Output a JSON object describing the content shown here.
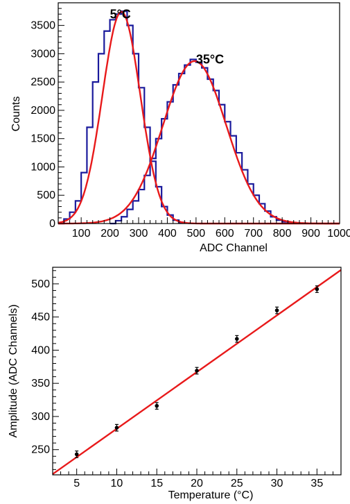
{
  "chart_data": [
    {
      "type": "histogram",
      "xlabel": "ADC Channel",
      "ylabel": "Counts",
      "xlim": [
        20,
        1000
      ],
      "ylim": [
        0,
        3900
      ],
      "xticks": [
        100,
        200,
        300,
        400,
        500,
        600,
        700,
        800,
        900,
        1000
      ],
      "yticks": [
        0,
        500,
        1000,
        1500,
        2000,
        2500,
        3000,
        3500
      ],
      "colors": {
        "histogram": "#1a1a9c",
        "fit": "#e8191a"
      },
      "annotations": [
        {
          "text": "5°C",
          "x": 200,
          "y": 3700
        },
        {
          "text": "35°C",
          "x": 500,
          "y": 2900
        }
      ],
      "series": [
        {
          "bins": [
            [
              20,
              0
            ],
            [
              40,
              80
            ],
            [
              60,
              200
            ],
            [
              80,
              400
            ],
            [
              100,
              900
            ],
            [
              120,
              1700
            ],
            [
              140,
              2500
            ],
            [
              160,
              3000
            ],
            [
              180,
              3400
            ],
            [
              200,
              3600
            ],
            [
              220,
              3700
            ],
            [
              240,
              3750
            ],
            [
              260,
              3500
            ],
            [
              280,
              3000
            ],
            [
              300,
              2400
            ],
            [
              320,
              1700
            ],
            [
              340,
              1100
            ],
            [
              360,
              650
            ],
            [
              380,
              300
            ],
            [
              400,
              150
            ],
            [
              420,
              60
            ],
            [
              440,
              20
            ],
            [
              460,
              0
            ]
          ]
        },
        {
          "bins": [
            [
              200,
              0
            ],
            [
              220,
              50
            ],
            [
              240,
              120
            ],
            [
              260,
              250
            ],
            [
              280,
              400
            ],
            [
              300,
              600
            ],
            [
              320,
              850
            ],
            [
              340,
              1150
            ],
            [
              360,
              1500
            ],
            [
              380,
              1850
            ],
            [
              400,
              2150
            ],
            [
              420,
              2450
            ],
            [
              440,
              2650
            ],
            [
              460,
              2800
            ],
            [
              480,
              2900
            ],
            [
              500,
              2850
            ],
            [
              520,
              2750
            ],
            [
              540,
              2550
            ],
            [
              560,
              2350
            ],
            [
              580,
              2100
            ],
            [
              600,
              1800
            ],
            [
              620,
              1550
            ],
            [
              640,
              1250
            ],
            [
              660,
              950
            ],
            [
              680,
              700
            ],
            [
              700,
              500
            ],
            [
              720,
              350
            ],
            [
              740,
              220
            ],
            [
              760,
              120
            ],
            [
              780,
              60
            ],
            [
              800,
              30
            ],
            [
              820,
              10
            ],
            [
              840,
              0
            ]
          ]
        }
      ],
      "fits": [
        {
          "type": "gaussian",
          "mean": 240,
          "sigma": 66,
          "amplitude": 3740
        },
        {
          "type": "gaussian",
          "mean": 495,
          "sigma": 110,
          "amplitude": 2870
        }
      ]
    },
    {
      "type": "scatter",
      "xlabel": "Temperature (°C)",
      "ylabel": "Amplitude (ADC Channels)",
      "xlim": [
        2,
        38
      ],
      "ylim": [
        212,
        525
      ],
      "xticks": [
        5,
        10,
        15,
        20,
        25,
        30,
        35
      ],
      "yticks": [
        250,
        300,
        350,
        400,
        450,
        500
      ],
      "colors": {
        "points": "#000000",
        "fit": "#e8191a"
      },
      "x": [
        5,
        10,
        15,
        20,
        25,
        30,
        35
      ],
      "y": [
        243,
        283,
        316,
        369,
        417,
        460,
        492
      ],
      "yerr": [
        5,
        5,
        5,
        5,
        5,
        5,
        5
      ],
      "fit": {
        "type": "linear",
        "slope": 8.55,
        "intercept": 196
      }
    }
  ]
}
